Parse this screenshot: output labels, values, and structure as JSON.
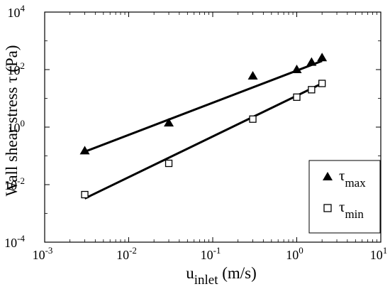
{
  "chart_data": {
    "type": "scatter",
    "x_scale": "log",
    "y_scale": "log",
    "xlim": [
      0.001,
      10
    ],
    "ylim": [
      0.0001,
      10000
    ],
    "x_ticks": [
      {
        "value": 0.001,
        "base": "10",
        "exp": "-3"
      },
      {
        "value": 0.01,
        "base": "10",
        "exp": "-2"
      },
      {
        "value": 0.1,
        "base": "10",
        "exp": "-1"
      },
      {
        "value": 1,
        "base": "10",
        "exp": "0"
      },
      {
        "value": 10,
        "base": "10",
        "exp": "1"
      }
    ],
    "y_ticks": [
      {
        "value": 0.0001,
        "base": "10",
        "exp": "-4"
      },
      {
        "value": 0.01,
        "base": "10",
        "exp": "-2"
      },
      {
        "value": 1,
        "base": "10",
        "exp": "0"
      },
      {
        "value": 100,
        "base": "10",
        "exp": "2"
      },
      {
        "value": 10000,
        "base": "10",
        "exp": "4"
      }
    ],
    "xlabel": {
      "main": "u",
      "sub": "inlet",
      "unit": " (m/s)"
    },
    "ylabel": "Wall shear stress τ (Pa)",
    "grid": false,
    "legend_position": "lower-right",
    "series": [
      {
        "name": "τ",
        "name_sub": "max",
        "marker": "filled-triangle",
        "color": "#000000",
        "points": [
          {
            "x": 0.003,
            "y": 0.15
          },
          {
            "x": 0.03,
            "y": 1.4
          },
          {
            "x": 0.3,
            "y": 60
          },
          {
            "x": 1.0,
            "y": 100
          },
          {
            "x": 1.5,
            "y": 180
          },
          {
            "x": 2.0,
            "y": 260
          }
        ],
        "fit_line": [
          {
            "x": 0.003,
            "y": 0.14
          },
          {
            "x": 2.0,
            "y": 200
          }
        ]
      },
      {
        "name": "τ",
        "name_sub": "min",
        "marker": "open-square",
        "color": "#000000",
        "points": [
          {
            "x": 0.003,
            "y": 0.0045
          },
          {
            "x": 0.03,
            "y": 0.055
          },
          {
            "x": 0.3,
            "y": 1.9
          },
          {
            "x": 1.0,
            "y": 11
          },
          {
            "x": 1.5,
            "y": 20
          },
          {
            "x": 2.0,
            "y": 33
          }
        ],
        "fit_line": [
          {
            "x": 0.003,
            "y": 0.0033
          },
          {
            "x": 2.0,
            "y": 33
          }
        ]
      }
    ]
  }
}
